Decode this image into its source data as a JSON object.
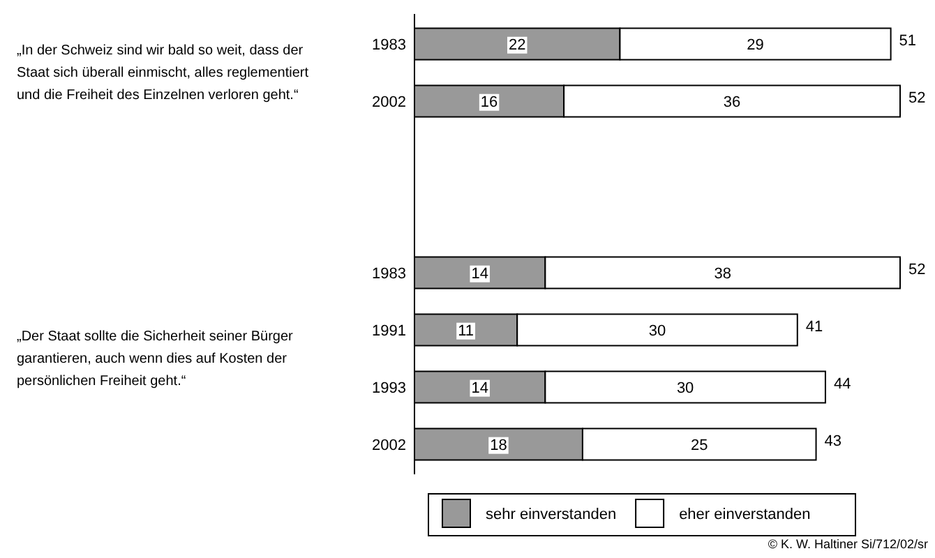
{
  "chart_data": {
    "type": "bar",
    "orientation": "horizontal",
    "stacked": true,
    "data_labels": true,
    "legend": "bottom",
    "categories": [
      "1983",
      "2002",
      null,
      null,
      "1983",
      "1991",
      "1993",
      "2002"
    ],
    "series": [
      {
        "name": "sehr einverstanden",
        "color": "#999999",
        "values": [
          22,
          16,
          null,
          null,
          14,
          11,
          14,
          18
        ]
      },
      {
        "name": "eher einverstanden",
        "color": "#ffffff",
        "values": [
          29,
          36,
          null,
          null,
          38,
          30,
          30,
          25
        ]
      }
    ],
    "totals": [
      "51",
      "52",
      null,
      null,
      "52",
      "41",
      "44",
      "43"
    ],
    "annotations": [
      "„In der Schweiz sind wir bald so weit, dass der Staat sich überall einmischt, alles reglementiert und die Freiheit des Einzelnen verloren geht.“",
      "„Der Staat sollte die Sicherheit seiner Bürger garantieren, auch wenn dies auf Kosten der persönlichen Freiheit geht.“",
      "© K. W. Haltiner Si/712/02/sr"
    ]
  }
}
